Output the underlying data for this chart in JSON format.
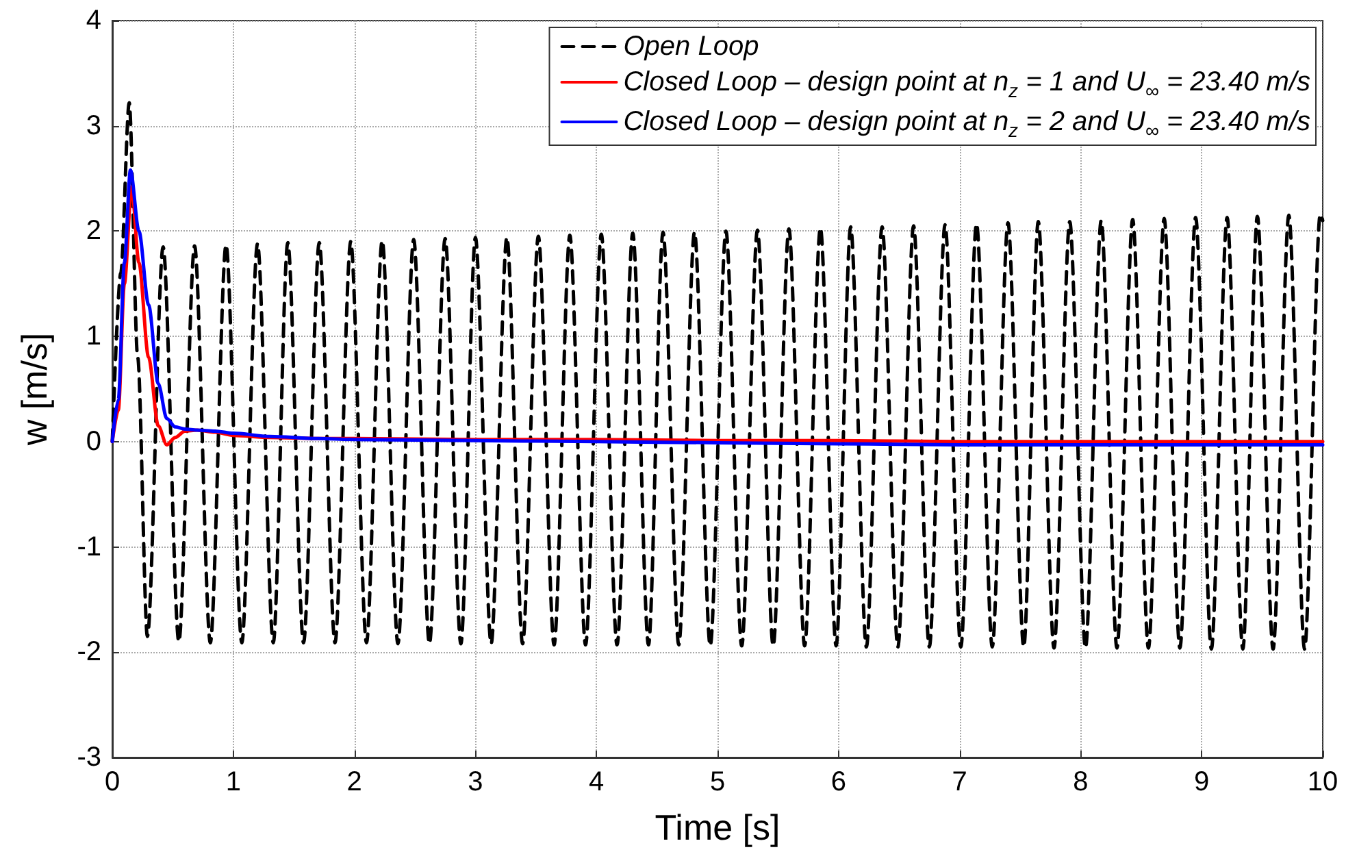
{
  "chart_data": {
    "type": "line",
    "xlabel": "Time [s]",
    "ylabel": "w [m/s]",
    "xlim": [
      0,
      10
    ],
    "ylim": [
      -3,
      4
    ],
    "xticks": [
      0,
      1,
      2,
      3,
      4,
      5,
      6,
      7,
      8,
      9,
      10
    ],
    "yticks": [
      -3,
      -2,
      -1,
      0,
      1,
      2,
      3,
      4
    ],
    "grid": true,
    "legend": "top right",
    "marker": "none",
    "series": [
      {
        "name": "Open Loop",
        "color": "#000000",
        "line_style": "dashed",
        "x": [
          0,
          0.07,
          0.14,
          0.21,
          0.29,
          0.42,
          0.55,
          0.68,
          0.81,
          0.94,
          1.07,
          1.2,
          1.33,
          1.45,
          1.58,
          1.71,
          1.84,
          1.97,
          2.1,
          2.23,
          2.36,
          2.49,
          2.62,
          2.75,
          2.88,
          3.0,
          3.13,
          3.26,
          3.39,
          3.52,
          3.65,
          3.78,
          3.91,
          4.04,
          4.17,
          4.3,
          4.43,
          4.55,
          4.68,
          4.81,
          4.94,
          5.07,
          5.2,
          5.33,
          5.46,
          5.59,
          5.72,
          5.85,
          5.98,
          6.1,
          6.23,
          6.36,
          6.49,
          6.62,
          6.75,
          6.88,
          7.01,
          7.14,
          7.27,
          7.4,
          7.53,
          7.65,
          7.78,
          7.91,
          8.04,
          8.17,
          8.3,
          8.43,
          8.56,
          8.69,
          8.82,
          8.95,
          9.08,
          9.21,
          9.34,
          9.46,
          9.59,
          9.72,
          9.85,
          9.98,
          10
        ],
        "values": [
          0,
          1.6,
          3.22,
          0.8,
          -1.85,
          1.85,
          -1.9,
          1.86,
          -1.91,
          1.87,
          -1.91,
          1.88,
          -1.91,
          1.89,
          -1.91,
          1.89,
          -1.91,
          1.9,
          -1.91,
          1.91,
          -1.92,
          1.92,
          -1.92,
          1.93,
          -1.92,
          1.94,
          -1.92,
          1.94,
          -1.92,
          1.95,
          -1.93,
          1.96,
          -1.93,
          1.97,
          -1.93,
          1.98,
          -1.93,
          1.99,
          -1.93,
          1.99,
          -1.94,
          2.0,
          -1.94,
          2.01,
          -1.94,
          2.02,
          -1.94,
          2.03,
          -1.94,
          2.04,
          -1.95,
          2.04,
          -1.95,
          2.05,
          -1.95,
          2.06,
          -1.95,
          2.07,
          -1.95,
          2.08,
          -1.95,
          2.09,
          -1.96,
          2.09,
          -1.96,
          2.1,
          -1.96,
          2.11,
          -1.96,
          2.12,
          -1.96,
          2.13,
          -1.97,
          2.13,
          -1.97,
          2.14,
          -1.97,
          2.15,
          -1.97,
          2.16,
          2.1
        ]
      },
      {
        "name": "Closed Loop – design point at n$_{z}$ = 1 and U$_{∞}$ = 23.40 m/s",
        "color": "#ff0000",
        "line_style": "solid",
        "x": [
          0,
          0.05,
          0.1,
          0.16,
          0.22,
          0.3,
          0.38,
          0.45,
          0.52,
          0.6,
          0.7,
          0.85,
          1.0,
          1.3,
          1.7,
          2.0,
          3.0,
          4.0,
          5.0,
          6.0,
          7.0,
          8.0,
          9.0,
          10.0
        ],
        "values": [
          0,
          0.3,
          1.5,
          2.42,
          1.7,
          0.8,
          0.15,
          -0.03,
          0.04,
          0.1,
          0.11,
          0.09,
          0.06,
          0.04,
          0.03,
          0.03,
          0.02,
          0.02,
          0.01,
          0.01,
          0,
          0,
          0,
          0
        ]
      },
      {
        "name": "Closed Loop – design point at n$_{z}$ = 2 and U$_{∞}$ = 23.40 m/s",
        "color": "#0000ff",
        "line_style": "solid",
        "x": [
          0,
          0.05,
          0.1,
          0.15,
          0.22,
          0.3,
          0.38,
          0.45,
          0.52,
          0.6,
          0.7,
          0.85,
          1.0,
          1.3,
          1.7,
          2.0,
          3.0,
          4.0,
          5.0,
          6.0,
          7.0,
          8.0,
          9.0,
          10.0
        ],
        "values": [
          0,
          0.4,
          1.7,
          2.58,
          2.0,
          1.3,
          0.55,
          0.22,
          0.14,
          0.12,
          0.11,
          0.1,
          0.08,
          0.05,
          0.03,
          0.02,
          0.01,
          0,
          -0.01,
          -0.02,
          -0.03,
          -0.03,
          -0.03,
          -0.03
        ]
      }
    ]
  }
}
